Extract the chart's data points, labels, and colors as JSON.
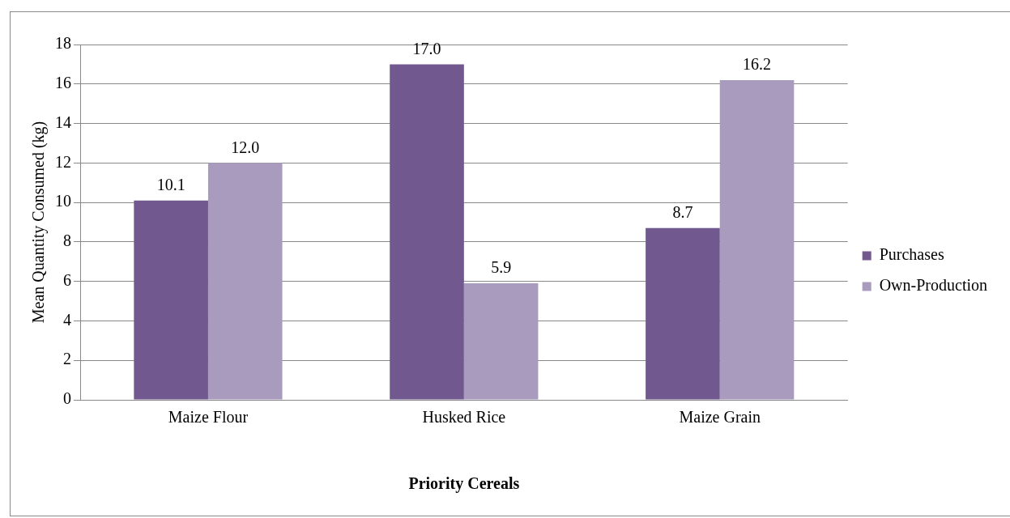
{
  "chart_data": {
    "type": "bar",
    "xlabel": "Priority Cereals",
    "ylabel": "Mean Quantity Consumed (kg)",
    "categories": [
      "Maize Flour",
      "Husked Rice",
      "Maize Grain"
    ],
    "series": [
      {
        "name": "Purchases",
        "color": "#71588f",
        "values": [
          10.1,
          17.0,
          8.7
        ],
        "value_labels": [
          "10.1",
          "17.0",
          "8.7"
        ]
      },
      {
        "name": "Own-Production",
        "color": "#a99bbd",
        "values": [
          12.0,
          5.9,
          16.2
        ],
        "value_labels": [
          "12.0",
          "5.9",
          "16.2"
        ]
      }
    ],
    "ylim": [
      0,
      18
    ],
    "yticks": [
      0,
      2,
      4,
      6,
      8,
      10,
      12,
      14,
      16,
      18
    ],
    "grid": "y",
    "legend": "right"
  }
}
